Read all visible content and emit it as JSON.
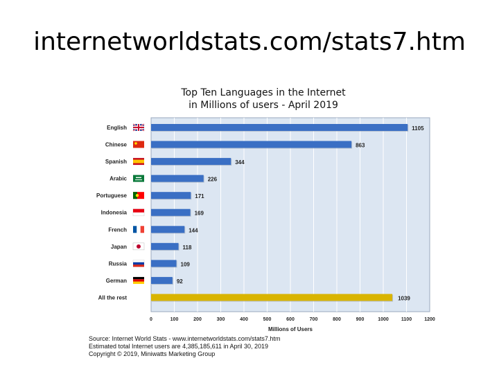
{
  "slide": {
    "title": "internetworldstats.com/stats7.htm"
  },
  "chart_data": {
    "type": "bar",
    "title": "Top Ten Languages in the Internet",
    "subtitle": "in Millions of users - April 2019",
    "xlabel": "Millions of Users",
    "ylabel": "",
    "xlim": [
      0,
      1200
    ],
    "x_ticks": [
      "0",
      "100",
      "200",
      "300",
      "400",
      "500",
      "600",
      "700",
      "800",
      "900",
      "1000",
      "1100",
      "1200"
    ],
    "grid": true,
    "categories": [
      "English",
      "Chinese",
      "Spanish",
      "Arabic",
      "Portuguese",
      "Indonesia",
      "French",
      "Japan",
      "Russia",
      "German",
      "All the rest"
    ],
    "values": [
      1105,
      863,
      344,
      226,
      171,
      169,
      144,
      118,
      109,
      92,
      1039
    ],
    "value_labels": [
      "1105",
      "863",
      "344",
      "226",
      "171",
      "169",
      "144",
      "118",
      "109",
      "92",
      "1039"
    ],
    "flag_icons": [
      "uk-flag-icon",
      "china-flag-icon",
      "spain-flag-icon",
      "saudi-flag-icon",
      "portugal-flag-icon",
      "indonesia-flag-icon",
      "france-flag-icon",
      "japan-flag-icon",
      "russia-flag-icon",
      "germany-flag-icon",
      ""
    ],
    "colors": {
      "bar": "#3a6fc4",
      "bar_highlight": "#d9b400",
      "plot_bg": "#dce6f2",
      "grid": "#ffffff"
    },
    "source_lines": [
      "Source: Internet World Stats - www.internetworldstats.com/stats7.htm",
      "Estimated total Internet users are 4,385,185,611 in April 30, 2019",
      "Copyright © 2019, Miniwatts Marketing Group"
    ]
  }
}
